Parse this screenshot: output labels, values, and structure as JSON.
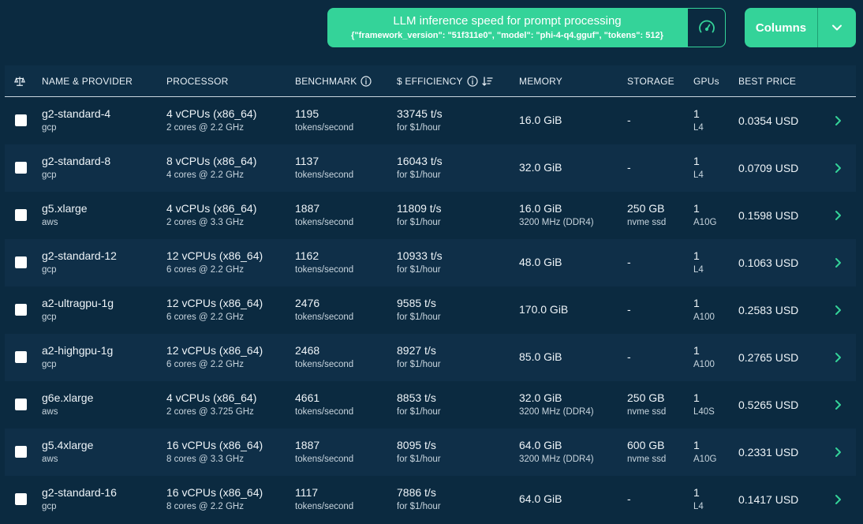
{
  "benchmark_button": {
    "title": "LLM inference speed for prompt processing",
    "subtitle": "{\"framework_version\": \"51f311e0\", \"model\": \"phi-4-q4.gguf\", \"tokens\": 512}"
  },
  "columns_button": {
    "label": "Columns"
  },
  "icons": {
    "gauge": "gauge-icon",
    "chevron_down": "chevron-down-icon",
    "scale": "scale-icon",
    "info": "info-icon",
    "sort": "sort-desc-icon",
    "row_chevron": "chevron-right-icon"
  },
  "colors": {
    "accent": "#34d399",
    "background": "#0b2a40",
    "row_alt": "#0f2f48"
  },
  "headers": {
    "name": "NAME & PROVIDER",
    "processor": "PROCESSOR",
    "benchmark": "BENCHMARK",
    "efficiency": "$ EFFICIENCY",
    "memory": "MEMORY",
    "storage": "STORAGE",
    "gpus": "GPUs",
    "price": "BEST PRICE"
  },
  "rows": [
    {
      "name": "g2-standard-4",
      "provider": "gcp",
      "cpu": "4 vCPUs (x86_64)",
      "cores": "2 cores @ 2.2 GHz",
      "bench": "1195",
      "bench_unit": "tokens/second",
      "eff": "33745 t/s",
      "eff_unit": "for $1/hour",
      "mem": "16.0 GiB",
      "mem_sub": "",
      "storage": "-",
      "storage_sub": "",
      "gpu_count": "1",
      "gpu_model": "L4",
      "price": "0.0354 USD"
    },
    {
      "name": "g2-standard-8",
      "provider": "gcp",
      "cpu": "8 vCPUs (x86_64)",
      "cores": "4 cores @ 2.2 GHz",
      "bench": "1137",
      "bench_unit": "tokens/second",
      "eff": "16043 t/s",
      "eff_unit": "for $1/hour",
      "mem": "32.0 GiB",
      "mem_sub": "",
      "storage": "-",
      "storage_sub": "",
      "gpu_count": "1",
      "gpu_model": "L4",
      "price": "0.0709 USD"
    },
    {
      "name": "g5.xlarge",
      "provider": "aws",
      "cpu": "4 vCPUs (x86_64)",
      "cores": "2 cores @ 3.3 GHz",
      "bench": "1887",
      "bench_unit": "tokens/second",
      "eff": "11809 t/s",
      "eff_unit": "for $1/hour",
      "mem": "16.0 GiB",
      "mem_sub": "3200 MHz (DDR4)",
      "storage": "250 GB",
      "storage_sub": "nvme ssd",
      "gpu_count": "1",
      "gpu_model": "A10G",
      "price": "0.1598 USD"
    },
    {
      "name": "g2-standard-12",
      "provider": "gcp",
      "cpu": "12 vCPUs (x86_64)",
      "cores": "6 cores @ 2.2 GHz",
      "bench": "1162",
      "bench_unit": "tokens/second",
      "eff": "10933 t/s",
      "eff_unit": "for $1/hour",
      "mem": "48.0 GiB",
      "mem_sub": "",
      "storage": "-",
      "storage_sub": "",
      "gpu_count": "1",
      "gpu_model": "L4",
      "price": "0.1063 USD"
    },
    {
      "name": "a2-ultragpu-1g",
      "provider": "gcp",
      "cpu": "12 vCPUs (x86_64)",
      "cores": "6 cores @ 2.2 GHz",
      "bench": "2476",
      "bench_unit": "tokens/second",
      "eff": "9585 t/s",
      "eff_unit": "for $1/hour",
      "mem": "170.0 GiB",
      "mem_sub": "",
      "storage": "-",
      "storage_sub": "",
      "gpu_count": "1",
      "gpu_model": "A100",
      "price": "0.2583 USD"
    },
    {
      "name": "a2-highgpu-1g",
      "provider": "gcp",
      "cpu": "12 vCPUs (x86_64)",
      "cores": "6 cores @ 2.2 GHz",
      "bench": "2468",
      "bench_unit": "tokens/second",
      "eff": "8927 t/s",
      "eff_unit": "for $1/hour",
      "mem": "85.0 GiB",
      "mem_sub": "",
      "storage": "-",
      "storage_sub": "",
      "gpu_count": "1",
      "gpu_model": "A100",
      "price": "0.2765 USD"
    },
    {
      "name": "g6e.xlarge",
      "provider": "aws",
      "cpu": "4 vCPUs (x86_64)",
      "cores": "2 cores @ 3.725 GHz",
      "bench": "4661",
      "bench_unit": "tokens/second",
      "eff": "8853 t/s",
      "eff_unit": "for $1/hour",
      "mem": "32.0 GiB",
      "mem_sub": "3200 MHz (DDR4)",
      "storage": "250 GB",
      "storage_sub": "nvme ssd",
      "gpu_count": "1",
      "gpu_model": "L40S",
      "price": "0.5265 USD"
    },
    {
      "name": "g5.4xlarge",
      "provider": "aws",
      "cpu": "16 vCPUs (x86_64)",
      "cores": "8 cores @ 3.3 GHz",
      "bench": "1887",
      "bench_unit": "tokens/second",
      "eff": "8095 t/s",
      "eff_unit": "for $1/hour",
      "mem": "64.0 GiB",
      "mem_sub": "3200 MHz (DDR4)",
      "storage": "600 GB",
      "storage_sub": "nvme ssd",
      "gpu_count": "1",
      "gpu_model": "A10G",
      "price": "0.2331 USD"
    },
    {
      "name": "g2-standard-16",
      "provider": "gcp",
      "cpu": "16 vCPUs (x86_64)",
      "cores": "8 cores @ 2.2 GHz",
      "bench": "1117",
      "bench_unit": "tokens/second",
      "eff": "7886 t/s",
      "eff_unit": "for $1/hour",
      "mem": "64.0 GiB",
      "mem_sub": "",
      "storage": "-",
      "storage_sub": "",
      "gpu_count": "1",
      "gpu_model": "L4",
      "price": "0.1417 USD"
    }
  ]
}
